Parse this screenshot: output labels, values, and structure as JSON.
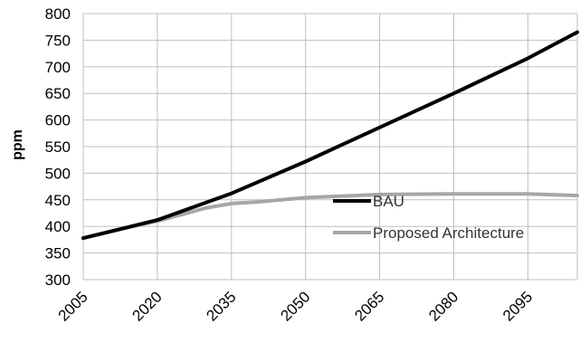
{
  "chart_data": {
    "type": "line",
    "title": "",
    "xlabel": "",
    "ylabel": "ppm",
    "x_ticks": [
      "2005",
      "2020",
      "2035",
      "2050",
      "2065",
      "2080",
      "2095"
    ],
    "xlim": [
      2005,
      2105
    ],
    "ylim": [
      300,
      800
    ],
    "y_ticks": [
      300,
      350,
      400,
      450,
      500,
      550,
      600,
      650,
      700,
      750,
      800
    ],
    "grid": true,
    "legend_position": "center-right",
    "series": [
      {
        "name": "BAU",
        "color": "#000000",
        "x": [
          2005,
          2020,
          2035,
          2050,
          2065,
          2080,
          2095,
          2105
        ],
        "y": [
          378,
          412,
          462,
          522,
          586,
          650,
          716,
          765
        ]
      },
      {
        "name": "Proposed Architecture",
        "color": "#a6a6a6",
        "x": [
          2005,
          2015,
          2020,
          2030,
          2035,
          2040,
          2050,
          2060,
          2065,
          2080,
          2095,
          2105
        ],
        "y": [
          378,
          400,
          410,
          435,
          443,
          446,
          454,
          458,
          460,
          461,
          461,
          458
        ]
      }
    ]
  }
}
